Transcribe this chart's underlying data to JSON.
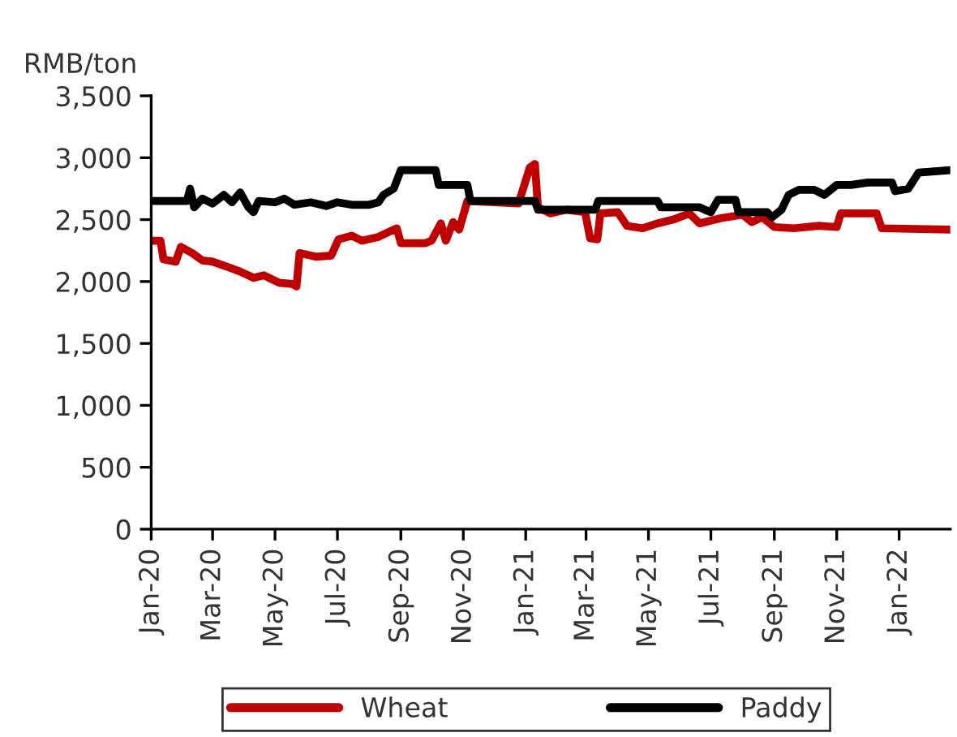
{
  "chart_data": {
    "type": "line",
    "ylabel": "RMB/ton",
    "xlim": [
      "2020-01-01",
      "2022-02-20"
    ],
    "xticks": [
      {
        "value": "2020-01-01",
        "label": "Jan-20"
      },
      {
        "value": "2020-03-01",
        "label": "Mar-20"
      },
      {
        "value": "2020-05-01",
        "label": "May-20"
      },
      {
        "value": "2020-07-01",
        "label": "Jul-20"
      },
      {
        "value": "2020-09-01",
        "label": "Sep-20"
      },
      {
        "value": "2020-11-01",
        "label": "Nov-20"
      },
      {
        "value": "2021-01-01",
        "label": "Jan-21"
      },
      {
        "value": "2021-03-01",
        "label": "Mar-21"
      },
      {
        "value": "2021-05-01",
        "label": "May-21"
      },
      {
        "value": "2021-07-01",
        "label": "Jul-21"
      },
      {
        "value": "2021-09-01",
        "label": "Sep-21"
      },
      {
        "value": "2021-11-01",
        "label": "Nov-21"
      },
      {
        "value": "2022-01-01",
        "label": "Jan-22"
      }
    ],
    "ylim": [
      0,
      3500
    ],
    "yticks": [
      0,
      500,
      {
        "value": 1000,
        "label": "1,000"
      },
      {
        "value": 1500,
        "label": "1,500"
      },
      {
        "value": 2000,
        "label": "2,000"
      },
      {
        "value": 2500,
        "label": "2,500"
      },
      {
        "value": 3000,
        "label": "3,000"
      },
      {
        "value": 3500,
        "label": "3,500"
      }
    ],
    "grid": false,
    "legend": "bottom",
    "marker": "none",
    "line_style": "solid",
    "series": [
      {
        "name": "Wheat",
        "color": "#c00000",
        "x": [
          "2020-01-01",
          "2020-01-10",
          "2020-01-13",
          "2020-01-25",
          "2020-01-30",
          "2020-02-10",
          "2020-02-20",
          "2020-03-01",
          "2020-03-15",
          "2020-03-28",
          "2020-04-10",
          "2020-04-20",
          "2020-05-05",
          "2020-05-18",
          "2020-05-22",
          "2020-05-25",
          "2020-06-10",
          "2020-06-25",
          "2020-07-02",
          "2020-07-15",
          "2020-07-25",
          "2020-08-10",
          "2020-08-20",
          "2020-08-28",
          "2020-09-01",
          "2020-09-25",
          "2020-10-01",
          "2020-10-10",
          "2020-10-15",
          "2020-10-22",
          "2020-10-28",
          "2020-11-05",
          "2020-12-01",
          "2020-12-25",
          "2021-01-05",
          "2021-01-10",
          "2021-01-13",
          "2021-01-25",
          "2021-02-10",
          "2021-02-28",
          "2021-03-05",
          "2021-03-12",
          "2021-03-15",
          "2021-04-01",
          "2021-04-10",
          "2021-04-25",
          "2021-05-10",
          "2021-05-25",
          "2021-06-10",
          "2021-06-20",
          "2021-07-10",
          "2021-08-01",
          "2021-08-10",
          "2021-08-20",
          "2021-09-01",
          "2021-09-20",
          "2021-10-15",
          "2021-11-01",
          "2021-11-05",
          "2021-12-10",
          "2021-12-15",
          "2022-02-20"
        ],
        "values": [
          2330,
          2330,
          2180,
          2160,
          2280,
          2230,
          2170,
          2160,
          2120,
          2080,
          2030,
          2050,
          1990,
          1980,
          1960,
          2230,
          2200,
          2210,
          2340,
          2370,
          2330,
          2360,
          2400,
          2430,
          2310,
          2310,
          2330,
          2470,
          2330,
          2480,
          2420,
          2650,
          2640,
          2630,
          2920,
          2950,
          2600,
          2550,
          2580,
          2560,
          2350,
          2340,
          2550,
          2560,
          2450,
          2430,
          2470,
          2500,
          2550,
          2470,
          2510,
          2540,
          2480,
          2520,
          2440,
          2430,
          2450,
          2440,
          2550,
          2550,
          2430,
          2420
        ]
      },
      {
        "name": "Paddy",
        "color": "#000000",
        "x": [
          "2020-01-01",
          "2020-02-05",
          "2020-02-08",
          "2020-02-12",
          "2020-02-20",
          "2020-03-01",
          "2020-03-12",
          "2020-03-20",
          "2020-03-28",
          "2020-04-05",
          "2020-04-10",
          "2020-04-15",
          "2020-05-01",
          "2020-05-10",
          "2020-05-20",
          "2020-06-05",
          "2020-06-20",
          "2020-07-01",
          "2020-07-15",
          "2020-08-01",
          "2020-08-10",
          "2020-08-15",
          "2020-08-25",
          "2020-09-01",
          "2020-10-05",
          "2020-10-08",
          "2020-11-05",
          "2020-11-08",
          "2021-01-10",
          "2021-01-13",
          "2021-03-10",
          "2021-03-13",
          "2021-05-10",
          "2021-05-13",
          "2021-06-20",
          "2021-06-25",
          "2021-07-01",
          "2021-07-08",
          "2021-07-25",
          "2021-07-28",
          "2021-08-25",
          "2021-08-30",
          "2021-09-08",
          "2021-09-15",
          "2021-09-25",
          "2021-10-10",
          "2021-10-20",
          "2021-11-01",
          "2021-11-15",
          "2021-12-01",
          "2021-12-25",
          "2021-12-28",
          "2022-01-10",
          "2022-01-20",
          "2022-02-20"
        ],
        "values": [
          2650,
          2650,
          2750,
          2600,
          2670,
          2630,
          2700,
          2640,
          2720,
          2600,
          2560,
          2650,
          2640,
          2670,
          2620,
          2640,
          2610,
          2640,
          2620,
          2620,
          2640,
          2700,
          2750,
          2900,
          2900,
          2780,
          2780,
          2650,
          2650,
          2580,
          2580,
          2650,
          2650,
          2600,
          2600,
          2580,
          2560,
          2660,
          2660,
          2560,
          2560,
          2520,
          2580,
          2700,
          2740,
          2740,
          2700,
          2780,
          2780,
          2800,
          2800,
          2730,
          2750,
          2880,
          2900
        ]
      }
    ]
  }
}
